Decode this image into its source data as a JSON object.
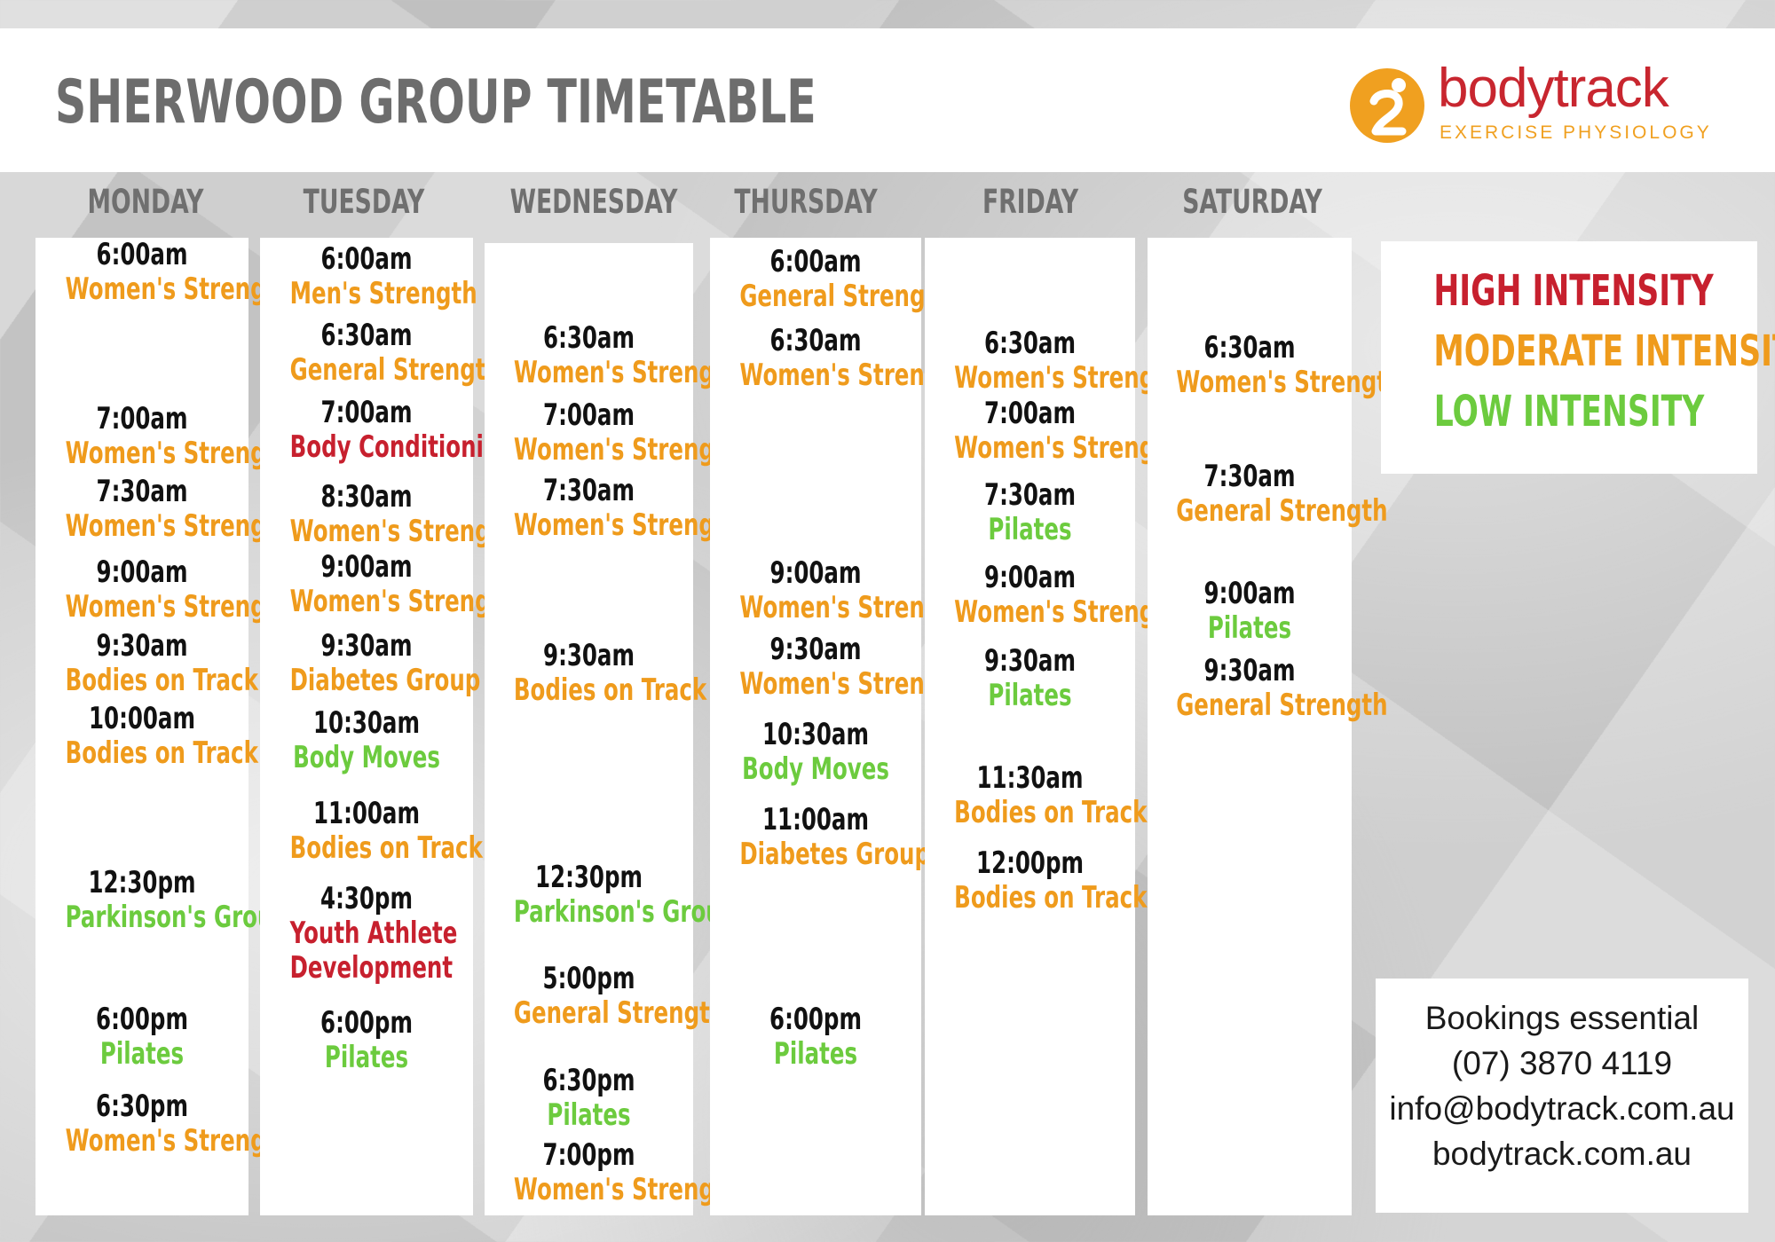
{
  "title": "SHERWOOD GROUP TIMETABLE",
  "logo": {
    "name": "bodytrack",
    "subtitle": "EXERCISE  PHYSIOLOGY"
  },
  "days": [
    {
      "name": "MONDAY",
      "classes": [
        {
          "time": "6:00am",
          "name": "Women's Strength",
          "intensity": "moderate"
        },
        {
          "time": "7:00am",
          "name": "Women's Strength",
          "intensity": "moderate"
        },
        {
          "time": "7:30am",
          "name": "Women's Strength",
          "intensity": "moderate"
        },
        {
          "time": "9:00am",
          "name": "Women's Strength",
          "intensity": "moderate"
        },
        {
          "time": "9:30am",
          "name": "Bodies on Track",
          "intensity": "moderate"
        },
        {
          "time": "10:00am",
          "name": "Bodies on Track",
          "intensity": "moderate"
        },
        {
          "time": "12:30pm",
          "name": "Parkinson's Group",
          "intensity": "low"
        },
        {
          "time": "6:00pm",
          "name": "Pilates",
          "intensity": "low"
        },
        {
          "time": "6:30pm",
          "name": "Women's Strength",
          "intensity": "moderate"
        }
      ]
    },
    {
      "name": "TUESDAY",
      "classes": [
        {
          "time": "6:00am",
          "name": "Men's Strength",
          "intensity": "moderate"
        },
        {
          "time": "6:30am",
          "name": "General Strength",
          "intensity": "moderate"
        },
        {
          "time": "7:00am",
          "name": "Body Conditioning",
          "intensity": "high"
        },
        {
          "time": "8:30am",
          "name": "Women's Strength",
          "intensity": "moderate"
        },
        {
          "time": "9:00am",
          "name": "Women's Strength",
          "intensity": "moderate"
        },
        {
          "time": "9:30am",
          "name": "Diabetes Group",
          "intensity": "moderate"
        },
        {
          "time": "10:30am",
          "name": "Body Moves",
          "intensity": "low"
        },
        {
          "time": "11:00am",
          "name": "Bodies on Track",
          "intensity": "moderate"
        },
        {
          "time": "4:30pm",
          "name": "Youth Athlete",
          "name2": "Development",
          "intensity": "high"
        },
        {
          "time": "6:00pm",
          "name": "Pilates",
          "intensity": "low"
        }
      ]
    },
    {
      "name": "WEDNESDAY",
      "classes": [
        {
          "time": "6:30am",
          "name": "Women's Strength",
          "intensity": "moderate"
        },
        {
          "time": "7:00am",
          "name": "Women's Strength",
          "intensity": "moderate"
        },
        {
          "time": "7:30am",
          "name": "Women's Strength",
          "intensity": "moderate"
        },
        {
          "time": "9:30am",
          "name": "Bodies on Track",
          "intensity": "moderate"
        },
        {
          "time": "12:30pm",
          "name": "Parkinson's Group",
          "intensity": "low"
        },
        {
          "time": "5:00pm",
          "name": "General Strength",
          "intensity": "moderate"
        },
        {
          "time": "6:30pm",
          "name": "Pilates",
          "intensity": "low"
        },
        {
          "time": "7:00pm",
          "name": "Women's Strength",
          "intensity": "moderate"
        }
      ]
    },
    {
      "name": "THURSDAY",
      "classes": [
        {
          "time": "6:00am",
          "name": "General Strength",
          "intensity": "moderate"
        },
        {
          "time": "6:30am",
          "name": "Women's Strength",
          "intensity": "moderate"
        },
        {
          "time": "9:00am",
          "name": "Women's Strength",
          "intensity": "moderate"
        },
        {
          "time": "9:30am",
          "name": "Women's Strength",
          "intensity": "moderate"
        },
        {
          "time": "10:30am",
          "name": "Body Moves",
          "intensity": "low"
        },
        {
          "time": "11:00am",
          "name": "Diabetes Group",
          "intensity": "moderate"
        },
        {
          "time": "6:00pm",
          "name": "Pilates",
          "intensity": "low"
        }
      ]
    },
    {
      "name": "FRIDAY",
      "classes": [
        {
          "time": "6:30am",
          "name": "Women's Strength",
          "intensity": "moderate"
        },
        {
          "time": "7:00am",
          "name": "Women's Strength",
          "intensity": "moderate"
        },
        {
          "time": "7:30am",
          "name": "Pilates",
          "intensity": "low"
        },
        {
          "time": "9:00am",
          "name": "Women's Strength",
          "intensity": "moderate"
        },
        {
          "time": "9:30am",
          "name": "Pilates",
          "intensity": "low"
        },
        {
          "time": "11:30am",
          "name": "Bodies on Track",
          "intensity": "moderate"
        },
        {
          "time": "12:00pm",
          "name": "Bodies on Track",
          "intensity": "moderate"
        }
      ]
    },
    {
      "name": "SATURDAY",
      "classes": [
        {
          "time": "6:30am",
          "name": "Women's Strength",
          "intensity": "moderate"
        },
        {
          "time": "7:30am",
          "name": "General Strength",
          "intensity": "moderate"
        },
        {
          "time": "9:00am",
          "name": "Pilates",
          "intensity": "low"
        },
        {
          "time": "9:30am",
          "name": "General Strength",
          "intensity": "moderate"
        }
      ]
    }
  ],
  "legend": {
    "high": "HIGH INTENSITY",
    "moderate": "MODERATE INTENSITY",
    "low": "LOW INTENSITY"
  },
  "colors": {
    "high": "#c7202e",
    "moderate": "#ef9b1c",
    "low": "#6ccb3e"
  },
  "contact": {
    "note": "Bookings essential",
    "phone": "(07) 3870 4119",
    "email": "info@bodytrack.com.au",
    "website": "bodytrack.com.au"
  }
}
